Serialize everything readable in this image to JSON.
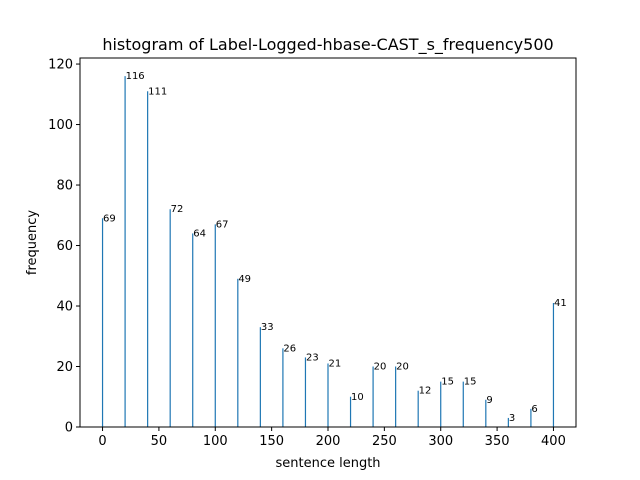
{
  "chart_data": {
    "type": "bar",
    "title": "histogram of Label-Logged-hbase-CAST_s_frequency500",
    "xlabel": "sentence length",
    "ylabel": "frequency",
    "xlim": [
      -20,
      420
    ],
    "ylim": [
      0,
      122
    ],
    "xticks": [
      0,
      50,
      100,
      150,
      200,
      250,
      300,
      350,
      400
    ],
    "yticks": [
      0,
      20,
      40,
      60,
      80,
      100,
      120
    ],
    "x": [
      0,
      20,
      40,
      60,
      80,
      100,
      120,
      140,
      160,
      180,
      200,
      220,
      240,
      260,
      280,
      300,
      320,
      340,
      360,
      380,
      400
    ],
    "values": [
      69,
      116,
      111,
      72,
      64,
      67,
      49,
      33,
      26,
      23,
      21,
      10,
      20,
      20,
      12,
      15,
      15,
      9,
      3,
      6,
      41
    ],
    "bar_color": "#1f77b4",
    "grid": false,
    "legend": "none"
  }
}
